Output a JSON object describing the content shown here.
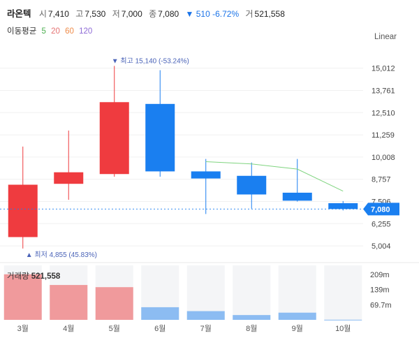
{
  "header": {
    "name": "라온텍",
    "open_label": "시",
    "open": "7,410",
    "high_label": "고",
    "high": "7,530",
    "low_label": "저",
    "low": "7,000",
    "close_label": "종",
    "close": "7,080",
    "change": "▼ 510 -6.72%",
    "volume_label": "거",
    "volume": "521,558"
  },
  "ma_legend": {
    "label": "이동평균",
    "ma5": "5",
    "ma20": "20",
    "ma60": "60",
    "ma120": "120"
  },
  "scale_toggle": "Linear",
  "volume_panel": {
    "label": "거래량",
    "value": "521,558"
  },
  "colors": {
    "up": "#ef3b3f",
    "down": "#1a7ff0",
    "ma5": "#7fd47f",
    "vol_up": "#f09a9c",
    "vol_down": "#8cbcf2"
  },
  "chart_data": {
    "type": "candlestick",
    "title": "라온텍",
    "categories": [
      "3월",
      "4월",
      "5월",
      "6월",
      "7월",
      "8월",
      "9월",
      "10월"
    ],
    "candles": [
      {
        "open": 5500,
        "high": 10600,
        "low": 4855,
        "close": 8450
      },
      {
        "open": 8500,
        "high": 11500,
        "low": 7600,
        "close": 9150
      },
      {
        "open": 9050,
        "high": 15140,
        "low": 8900,
        "close": 13100
      },
      {
        "open": 13000,
        "high": 14900,
        "low": 8900,
        "close": 9200
      },
      {
        "open": 9200,
        "high": 9900,
        "low": 6800,
        "close": 8800
      },
      {
        "open": 8950,
        "high": 9700,
        "low": 7100,
        "close": 7900
      },
      {
        "open": 8000,
        "high": 9900,
        "low": 7500,
        "close": 7550
      },
      {
        "open": 7410,
        "high": 7530,
        "low": 7000,
        "close": 7080
      }
    ],
    "ma5": [
      null,
      null,
      null,
      null,
      9750,
      9620,
      9330,
      8090
    ],
    "y_ticks": [
      "15,012",
      "13,761",
      "12,510",
      "11,259",
      "10,008",
      "8,757",
      "7,506",
      "6,255",
      "5,004"
    ],
    "y_tick_values": [
      15012,
      13761,
      12510,
      11259,
      10008,
      8757,
      7506,
      6255,
      5004
    ],
    "ylim": [
      4300,
      16100
    ],
    "current_price": "7,080",
    "current_price_value": 7080,
    "high_annotation": "▼ 최고 15,140 (-53.24%)",
    "high_annotation_value": 15140,
    "low_annotation": "▲ 최저 4,855 (45.83%)",
    "low_annotation_value": 4855,
    "volume": {
      "values": [
        209,
        160,
        150,
        58,
        40,
        22,
        33,
        0.52
      ],
      "unit": "m",
      "y_ticks": [
        "209m",
        "139m",
        "69.7m"
      ],
      "y_tick_values": [
        209,
        139,
        69.7
      ],
      "ylim": [
        0,
        250
      ]
    }
  }
}
